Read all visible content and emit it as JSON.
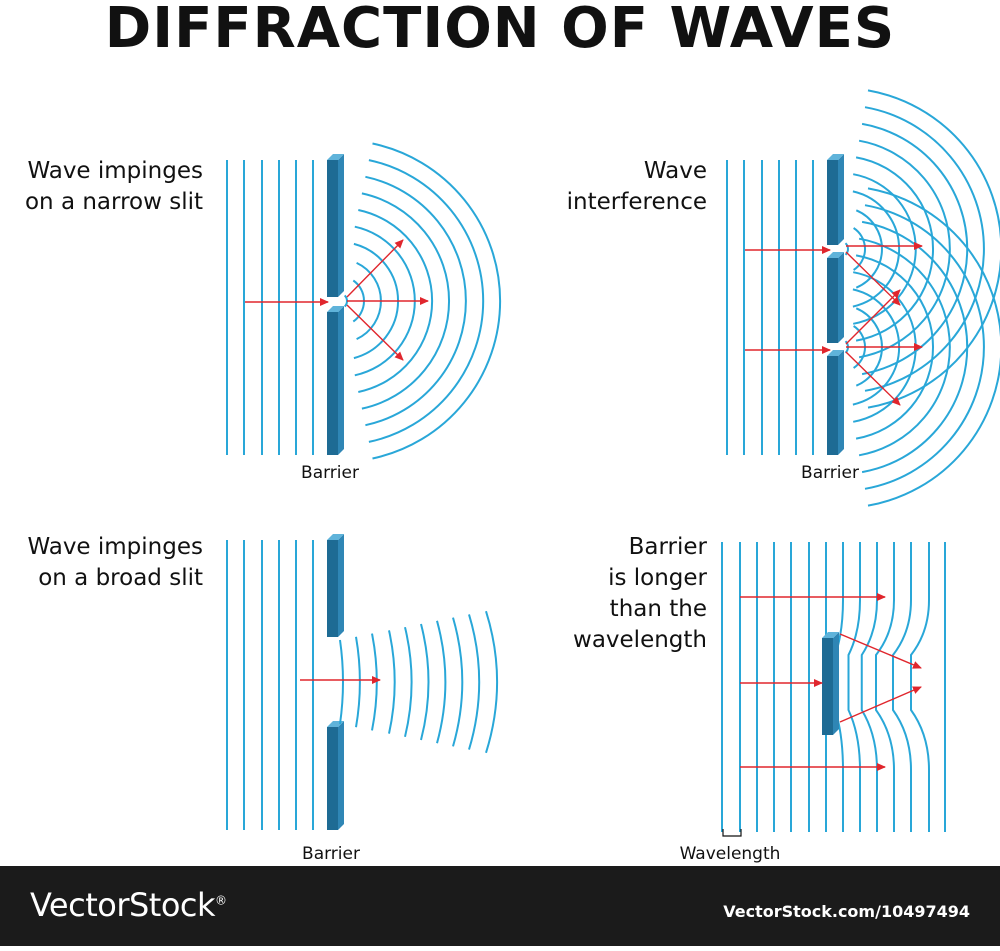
{
  "title": "DIFFRACTION OF WAVES",
  "panels": {
    "narrow_slit": {
      "label_line1": "Wave impinges",
      "label_line2": "on a narrow slit",
      "caption": "Barrier"
    },
    "interference": {
      "label_line1": "Wave",
      "label_line2": "interference",
      "caption": "Barrier"
    },
    "broad_slit": {
      "label_line1": "Wave impinges",
      "label_line2": "on a broad slit",
      "caption": "Barrier"
    },
    "long_barrier": {
      "label_line1": "Barrier",
      "label_line2": "is longer",
      "label_line3": "than the",
      "label_line4": "wavelength",
      "caption": "Wavelength"
    }
  },
  "footer": {
    "brand": "VectorStock",
    "brand_mark": "®",
    "image_id": "VectorStock.com/10497494"
  },
  "colors": {
    "wave": "#29a7d8",
    "barrier_front": "#1e6b94",
    "barrier_side": "#2f86b5",
    "barrier_top": "#5fb3da",
    "arrow": "#e0262d",
    "footer_bg": "#1b1b1b"
  }
}
